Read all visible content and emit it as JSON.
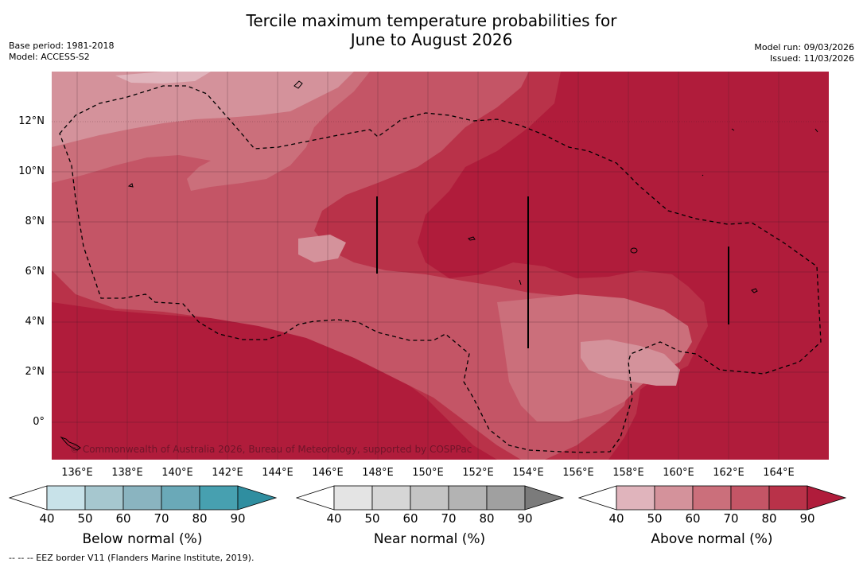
{
  "title": {
    "line1": "Tercile maximum temperature probabilities for",
    "line2": "June to August 2026"
  },
  "meta": {
    "base_period": "Base period: 1981-2018",
    "model": "Model: ACCESS-S2",
    "model_run": "Model run: 09/03/2026",
    "issued": "Issued: 11/03/2026"
  },
  "map": {
    "lat_labels": [
      "12°N",
      "10°N",
      "8°N",
      "6°N",
      "4°N",
      "2°N",
      "0°"
    ],
    "lon_labels": [
      "136°E",
      "138°E",
      "140°E",
      "142°E",
      "144°E",
      "146°E",
      "148°E",
      "150°E",
      "152°E",
      "154°E",
      "156°E",
      "158°E",
      "160°E",
      "162°E",
      "164°E"
    ],
    "credit": "© Commonwealth of Australia 2026, Bureau of Meteorology, supported by COSPPac"
  },
  "colorbars": [
    {
      "title": "Below normal (%)",
      "ticks": [
        "40",
        "50",
        "60",
        "70",
        "80",
        "90"
      ],
      "colors": [
        "#c8e2e9",
        "#a6c7cf",
        "#8ab4c0",
        "#6aa9b8",
        "#47a0b0",
        "#2f8ea0"
      ]
    },
    {
      "title": "Near normal (%)",
      "ticks": [
        "40",
        "50",
        "60",
        "70",
        "80",
        "90"
      ],
      "colors": [
        "#e4e4e4",
        "#d6d6d6",
        "#c4c4c4",
        "#b3b3b3",
        "#a0a0a0",
        "#7b7b7b"
      ]
    },
    {
      "title": "Above normal (%)",
      "ticks": [
        "40",
        "50",
        "60",
        "70",
        "80",
        "90"
      ],
      "colors": [
        "#e0b4bc",
        "#d4929b",
        "#cb6f7b",
        "#c45566",
        "#b93249",
        "#b01c3b"
      ]
    }
  ],
  "footer": "--  --  -- EEZ border V11 (Flanders Marine Institute, 2019).",
  "colors": {
    "above_50": "#d4929b",
    "above_60": "#cb6f7b",
    "above_70": "#c45566",
    "above_80": "#b93249",
    "above_90": "#b01c3b"
  }
}
